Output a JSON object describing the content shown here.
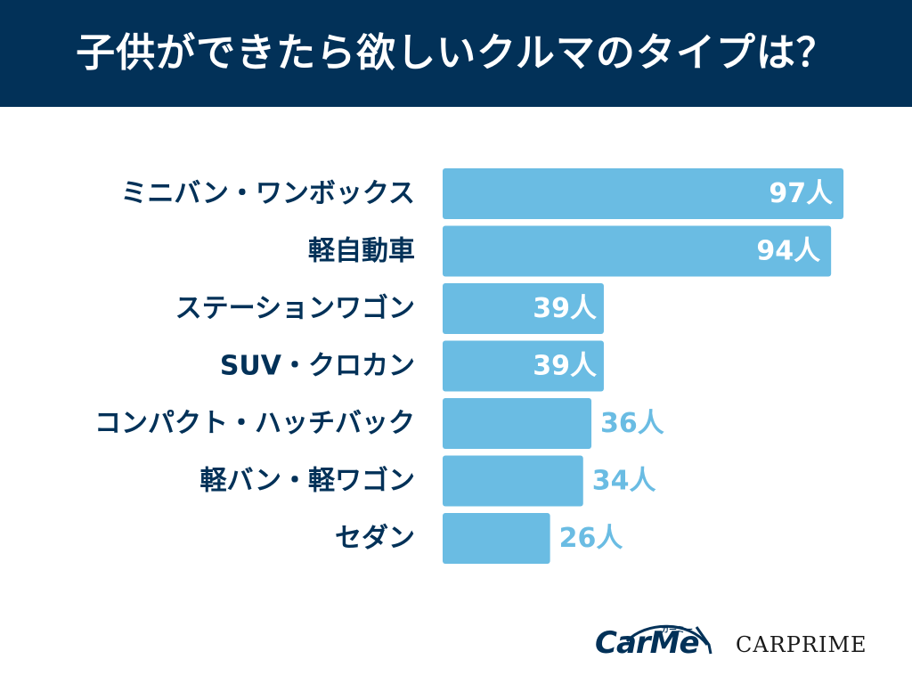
{
  "chart_data": {
    "type": "bar",
    "orientation": "horizontal",
    "title": "子供ができたら欲しいクルマのタイプは？",
    "categories": [
      "ミニバン・ワンボックス",
      "軽自動車",
      "ステーションワゴン",
      "SUV・クロカン",
      "コンパクト・ハッチバック",
      "軽バン・軽ワゴン",
      "セダン"
    ],
    "values": [
      97,
      94,
      39,
      39,
      36,
      34,
      26
    ],
    "value_labels": [
      "97人",
      "94人",
      "39人",
      "39人",
      "36人",
      "34人",
      "26人"
    ],
    "xlim": [
      0,
      100
    ],
    "grid": false,
    "legend": "none"
  },
  "colors": {
    "header_bg": "#023158",
    "bar": "#6ABCE3",
    "category_text": "#023158",
    "value_inside": "#ffffff",
    "value_outside": "#6ABCE3"
  },
  "logos": {
    "carme_text": "CarMe",
    "carme_kana": "カーミー",
    "carprime_text": "CARPRIME"
  }
}
